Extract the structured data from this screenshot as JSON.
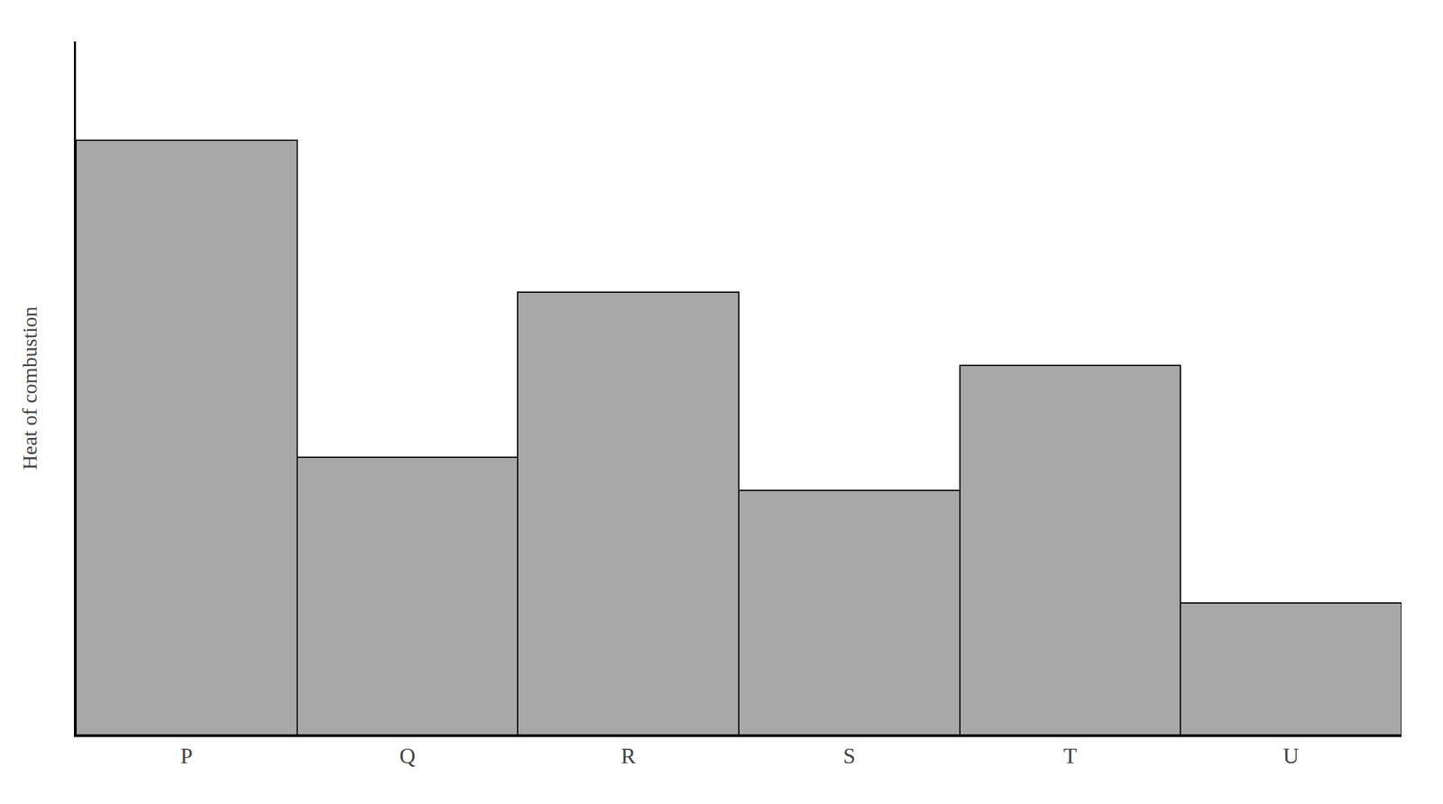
{
  "chart_data": {
    "type": "bar",
    "categories": [
      "P",
      "Q",
      "R",
      "S",
      "T",
      "U"
    ],
    "values": [
      0.9,
      0.42,
      0.67,
      0.37,
      0.56,
      0.2
    ],
    "color": "#a8a8a8",
    "ylabel": "Heat of combustion",
    "ylim": [
      0,
      1.05
    ],
    "grid": false,
    "tick_labels": "x"
  }
}
